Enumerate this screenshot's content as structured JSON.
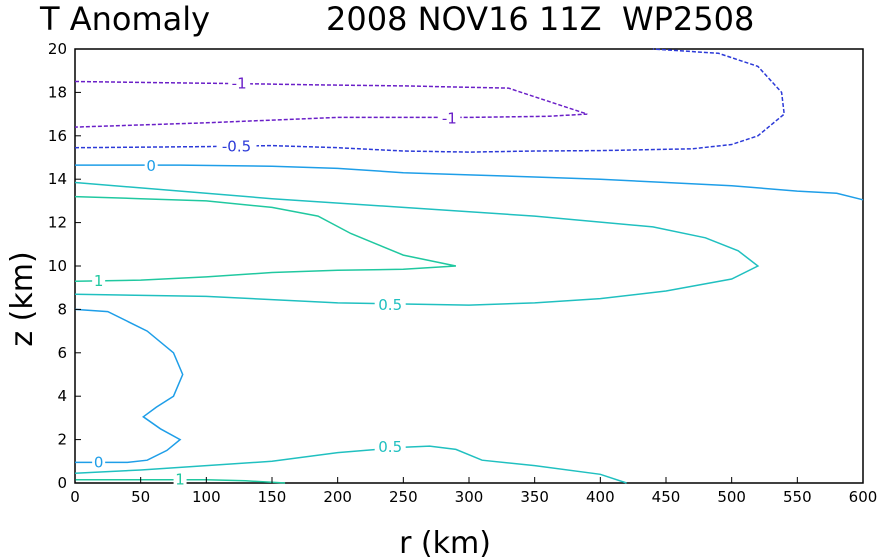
{
  "chart_data": {
    "type": "contour",
    "title_left": "T Anomaly",
    "title_right": "2008 NOV16 11Z  WP2508",
    "xlabel": "r (km)",
    "ylabel": "z (km)",
    "xlim": [
      0,
      600
    ],
    "ylim": [
      0,
      20
    ],
    "xticks": [
      0,
      50,
      100,
      150,
      200,
      250,
      300,
      350,
      400,
      450,
      500,
      550,
      600
    ],
    "yticks": [
      0,
      2,
      4,
      6,
      8,
      10,
      12,
      14,
      16,
      18,
      20
    ],
    "contours": [
      {
        "level": -1,
        "label": "-1",
        "color": "#6a1fc8",
        "dashed": true,
        "points": [
          [
            0,
            18.5
          ],
          [
            60,
            18.45
          ],
          [
            130,
            18.4
          ],
          [
            180,
            18.35
          ],
          [
            250,
            18.3
          ],
          [
            330,
            18.2
          ],
          [
            360,
            17.6
          ],
          [
            390,
            17.0
          ],
          [
            360,
            16.9
          ],
          [
            300,
            16.85
          ],
          [
            200,
            16.85
          ],
          [
            100,
            16.6
          ],
          [
            0,
            16.4
          ]
        ],
        "labels": [
          {
            "x": 125,
            "y": 18.4,
            "text": "-1"
          },
          {
            "x": 285,
            "y": 16.8,
            "text": "-1"
          }
        ]
      },
      {
        "level": -0.5,
        "label": "-0.5",
        "color": "#2c3ad8",
        "dashed": true,
        "points": [
          [
            0,
            15.45
          ],
          [
            100,
            15.5
          ],
          [
            150,
            15.55
          ],
          [
            200,
            15.45
          ],
          [
            250,
            15.3
          ],
          [
            300,
            15.25
          ],
          [
            350,
            15.3
          ],
          [
            400,
            15.32
          ],
          [
            470,
            15.4
          ],
          [
            500,
            15.6
          ],
          [
            520,
            16.0
          ],
          [
            540,
            17.0
          ],
          [
            538,
            18.0
          ],
          [
            520,
            19.2
          ],
          [
            490,
            19.8
          ],
          [
            440,
            20.0
          ]
        ],
        "labels": [
          {
            "x": 123,
            "y": 15.5,
            "text": "-0.5"
          }
        ]
      },
      {
        "level": 0,
        "label": "0",
        "color": "#1e9ee8",
        "dashed": false,
        "points": [
          [
            0,
            14.65
          ],
          [
            80,
            14.65
          ],
          [
            150,
            14.6
          ],
          [
            200,
            14.5
          ],
          [
            250,
            14.3
          ],
          [
            300,
            14.2
          ],
          [
            350,
            14.1
          ],
          [
            400,
            14.0
          ],
          [
            450,
            13.85
          ],
          [
            500,
            13.7
          ],
          [
            550,
            13.45
          ],
          [
            580,
            13.35
          ],
          [
            600,
            13.05
          ]
        ],
        "labels": [
          {
            "x": 58,
            "y": 14.6,
            "text": "0"
          }
        ]
      },
      {
        "level": 0,
        "label": "0",
        "color": "#1e9ee8",
        "dashed": false,
        "points": [
          [
            0,
            8.0
          ],
          [
            25,
            7.9
          ],
          [
            55,
            7.0
          ],
          [
            75,
            6.0
          ],
          [
            82,
            5.0
          ],
          [
            75,
            4.0
          ],
          [
            62,
            3.5
          ],
          [
            52,
            3.05
          ],
          [
            65,
            2.5
          ],
          [
            80,
            2.0
          ],
          [
            70,
            1.5
          ],
          [
            55,
            1.05
          ],
          [
            40,
            0.95
          ],
          [
            0,
            0.95
          ]
        ],
        "labels": [
          {
            "x": 18,
            "y": 0.95,
            "text": "0"
          }
        ]
      },
      {
        "level": 0.5,
        "label": "0.5",
        "color": "#20c0c0",
        "dashed": false,
        "points": [
          [
            0,
            8.7
          ],
          [
            100,
            8.6
          ],
          [
            200,
            8.3
          ],
          [
            250,
            8.25
          ],
          [
            300,
            8.2
          ],
          [
            350,
            8.3
          ],
          [
            400,
            8.5
          ],
          [
            450,
            8.85
          ],
          [
            500,
            9.4
          ],
          [
            520,
            10.0
          ],
          [
            505,
            10.7
          ],
          [
            480,
            11.3
          ],
          [
            440,
            11.8
          ],
          [
            350,
            12.3
          ],
          [
            250,
            12.7
          ],
          [
            150,
            13.1
          ],
          [
            100,
            13.35
          ],
          [
            50,
            13.6
          ],
          [
            0,
            13.85
          ]
        ],
        "labels": [
          {
            "x": 240,
            "y": 8.2,
            "text": "0.5"
          }
        ]
      },
      {
        "level": 0.5,
        "label": "0.5",
        "color": "#20c0c0",
        "dashed": false,
        "points": [
          [
            0,
            0.45
          ],
          [
            50,
            0.6
          ],
          [
            100,
            0.8
          ],
          [
            150,
            1.0
          ],
          [
            200,
            1.4
          ],
          [
            250,
            1.65
          ],
          [
            270,
            1.7
          ],
          [
            290,
            1.55
          ],
          [
            310,
            1.05
          ],
          [
            350,
            0.8
          ],
          [
            400,
            0.4
          ],
          [
            420,
            0.0
          ]
        ],
        "labels": [
          {
            "x": 240,
            "y": 1.65,
            "text": "0.5"
          }
        ]
      },
      {
        "level": 1,
        "label": "1",
        "color": "#20c8a0",
        "dashed": false,
        "points": [
          [
            0,
            9.3
          ],
          [
            50,
            9.35
          ],
          [
            100,
            9.5
          ],
          [
            150,
            9.7
          ],
          [
            200,
            9.8
          ],
          [
            250,
            9.85
          ],
          [
            290,
            10.0
          ],
          [
            250,
            10.5
          ],
          [
            230,
            11.0
          ],
          [
            210,
            11.5
          ],
          [
            185,
            12.3
          ],
          [
            150,
            12.7
          ],
          [
            100,
            13.0
          ],
          [
            50,
            13.1
          ],
          [
            0,
            13.2
          ]
        ],
        "labels": [
          {
            "x": 18,
            "y": 9.3,
            "text": "1"
          }
        ]
      },
      {
        "level": 1,
        "label": "1",
        "color": "#20c8a0",
        "dashed": false,
        "points": [
          [
            0,
            0.15
          ],
          [
            50,
            0.15
          ],
          [
            100,
            0.15
          ],
          [
            130,
            0.1
          ],
          [
            160,
            0.0
          ]
        ],
        "labels": [
          {
            "x": 80,
            "y": 0.15,
            "text": "1"
          }
        ]
      }
    ]
  }
}
